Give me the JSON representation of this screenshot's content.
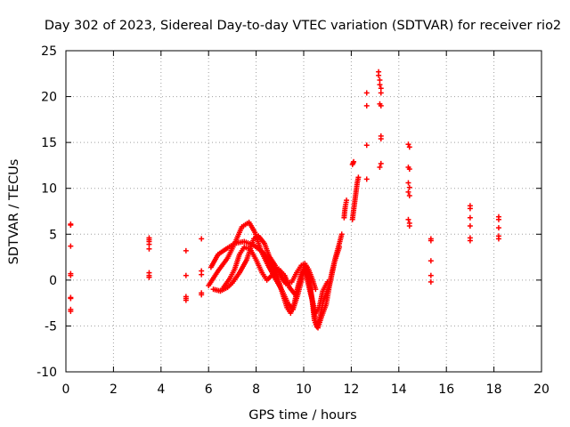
{
  "chart_data": {
    "type": "scatter",
    "title": "Day 302 of 2023, Sidereal Day-to-day VTEC variation (SDTVAR) for receiver rio2",
    "xlabel": "GPS time / hours",
    "ylabel": "SDTVAR / TECUs",
    "xlim": [
      0,
      20
    ],
    "ylim": [
      -10,
      25
    ],
    "xticks": [
      0,
      2,
      4,
      6,
      8,
      10,
      12,
      14,
      16,
      18,
      20
    ],
    "yticks": [
      -10,
      -5,
      0,
      5,
      10,
      15,
      20,
      25
    ],
    "xtick_labels": [
      "0",
      "2",
      "4",
      "6",
      "8",
      "10",
      "12",
      "14",
      "16",
      "18",
      "20"
    ],
    "ytick_labels": [
      "-10",
      "-5",
      "0",
      "5",
      "10",
      "15",
      "20",
      "25"
    ],
    "grid": true,
    "marker": "plus",
    "color": "#ff0000",
    "series": [
      {
        "name": "rio2",
        "points": [
          [
            0.2,
            6.1
          ],
          [
            0.2,
            6.0
          ],
          [
            0.2,
            3.7
          ],
          [
            0.2,
            0.7
          ],
          [
            0.2,
            0.5
          ],
          [
            0.2,
            -1.9
          ],
          [
            0.2,
            -2.0
          ],
          [
            0.2,
            -3.2
          ],
          [
            0.2,
            -3.4
          ],
          [
            3.5,
            4.6
          ],
          [
            3.5,
            4.4
          ],
          [
            3.5,
            4.2
          ],
          [
            3.5,
            3.9
          ],
          [
            3.5,
            3.4
          ],
          [
            3.5,
            0.8
          ],
          [
            3.5,
            0.5
          ],
          [
            3.5,
            0.3
          ],
          [
            5.05,
            3.2
          ],
          [
            5.05,
            0.5
          ],
          [
            5.05,
            -1.8
          ],
          [
            5.05,
            -2.0
          ],
          [
            5.05,
            -2.2
          ],
          [
            5.7,
            4.5
          ],
          [
            5.7,
            1.0
          ],
          [
            5.7,
            0.6
          ],
          [
            5.7,
            -1.4
          ],
          [
            5.7,
            -1.6
          ],
          [
            12.65,
            20.4
          ],
          [
            12.65,
            19.0
          ],
          [
            12.65,
            14.7
          ],
          [
            12.65,
            11.0
          ],
          [
            13.15,
            22.7
          ],
          [
            13.15,
            22.3
          ],
          [
            13.2,
            21.8
          ],
          [
            13.2,
            21.3
          ],
          [
            13.25,
            20.9
          ],
          [
            13.25,
            20.4
          ],
          [
            13.2,
            19.2
          ],
          [
            13.25,
            19.0
          ],
          [
            13.25,
            15.7
          ],
          [
            13.25,
            15.4
          ],
          [
            13.25,
            12.7
          ],
          [
            13.2,
            12.3
          ],
          [
            14.4,
            14.8
          ],
          [
            14.45,
            14.5
          ],
          [
            14.4,
            12.3
          ],
          [
            14.45,
            12.1
          ],
          [
            14.4,
            10.6
          ],
          [
            14.45,
            10.1
          ],
          [
            14.4,
            9.6
          ],
          [
            14.45,
            9.2
          ],
          [
            14.4,
            6.6
          ],
          [
            14.45,
            6.2
          ],
          [
            14.45,
            5.9
          ],
          [
            15.35,
            4.5
          ],
          [
            15.35,
            4.3
          ],
          [
            15.35,
            2.1
          ],
          [
            15.35,
            0.5
          ],
          [
            15.35,
            -0.2
          ],
          [
            17.0,
            8.1
          ],
          [
            17.0,
            7.8
          ],
          [
            17.0,
            6.8
          ],
          [
            17.0,
            5.9
          ],
          [
            17.0,
            4.6
          ],
          [
            17.0,
            4.3
          ],
          [
            18.2,
            6.9
          ],
          [
            18.2,
            6.6
          ],
          [
            18.2,
            5.7
          ],
          [
            18.2,
            4.8
          ],
          [
            18.2,
            4.5
          ]
        ],
        "dense_segments": [
          [
            [
              6.1,
              1.4
            ],
            [
              6.4,
              2.8
            ],
            [
              6.8,
              3.5
            ],
            [
              7.1,
              4.0
            ],
            [
              7.5,
              4.2
            ],
            [
              7.9,
              3.8
            ],
            [
              8.3,
              3.0
            ],
            [
              8.6,
              1.8
            ],
            [
              8.9,
              0.4
            ],
            [
              9.1,
              -1.4
            ],
            [
              9.3,
              -3.0
            ],
            [
              9.45,
              -3.6
            ],
            [
              9.6,
              -2.6
            ],
            [
              9.75,
              -0.8
            ],
            [
              9.9,
              0.8
            ],
            [
              10.05,
              1.4
            ],
            [
              10.2,
              0.3
            ],
            [
              10.35,
              -2.0
            ],
            [
              10.45,
              -4.4
            ],
            [
              10.55,
              -5.1
            ],
            [
              10.7,
              -3.8
            ],
            [
              10.85,
              -2.0
            ],
            [
              11.05,
              -0.8
            ],
            [
              11.2,
              1.0
            ],
            [
              11.35,
              2.6
            ],
            [
              11.5,
              4.0
            ],
            [
              11.6,
              5.0
            ]
          ],
          [
            [
              6.0,
              -0.6
            ],
            [
              6.4,
              1.0
            ],
            [
              6.8,
              2.4
            ],
            [
              7.1,
              4.0
            ],
            [
              7.4,
              5.8
            ],
            [
              7.7,
              6.3
            ],
            [
              7.95,
              5.2
            ],
            [
              8.2,
              3.2
            ],
            [
              8.5,
              1.6
            ],
            [
              8.8,
              0.2
            ],
            [
              9.1,
              -1.2
            ],
            [
              9.35,
              -2.6
            ],
            [
              9.55,
              -3.2
            ],
            [
              9.75,
              -1.6
            ],
            [
              9.95,
              0.4
            ],
            [
              10.1,
              1.5
            ],
            [
              10.25,
              -0.6
            ],
            [
              10.4,
              -2.8
            ],
            [
              10.5,
              -4.6
            ],
            [
              10.6,
              -5.2
            ],
            [
              10.75,
              -4.0
            ],
            [
              10.95,
              -2.6
            ],
            [
              11.1,
              -0.4
            ],
            [
              11.3,
              2.0
            ],
            [
              11.5,
              3.6
            ]
          ],
          [
            [
              6.6,
              -0.9
            ],
            [
              6.9,
              0.2
            ],
            [
              7.1,
              1.2
            ],
            [
              7.3,
              2.8
            ],
            [
              7.5,
              3.6
            ],
            [
              7.75,
              3.4
            ],
            [
              8.0,
              2.2
            ],
            [
              8.25,
              0.8
            ],
            [
              8.45,
              0.0
            ],
            [
              8.7,
              0.6
            ],
            [
              8.95,
              1.2
            ],
            [
              9.2,
              0.5
            ],
            [
              9.4,
              -0.8
            ],
            [
              9.65,
              -1.6
            ],
            [
              9.85,
              -0.2
            ],
            [
              10.0,
              1.0
            ],
            [
              10.15,
              0.0
            ],
            [
              10.3,
              -1.6
            ],
            [
              10.5,
              -3.6
            ],
            [
              10.65,
              -3.0
            ],
            [
              10.8,
              -1.2
            ],
            [
              11.0,
              -0.2
            ]
          ],
          [
            [
              6.2,
              -1.0
            ],
            [
              6.5,
              -1.2
            ],
            [
              6.8,
              -0.8
            ],
            [
              7.0,
              -0.3
            ],
            [
              7.3,
              0.8
            ],
            [
              7.6,
              2.2
            ],
            [
              7.9,
              4.5
            ],
            [
              8.1,
              4.8
            ],
            [
              8.35,
              4.0
            ],
            [
              8.55,
              2.6
            ],
            [
              8.8,
              1.6
            ],
            [
              9.0,
              0.6
            ],
            [
              9.25,
              -0.4
            ],
            [
              9.5,
              -0.2
            ],
            [
              9.7,
              0.8
            ],
            [
              9.9,
              1.6
            ],
            [
              10.05,
              1.8
            ],
            [
              10.2,
              1.2
            ],
            [
              10.35,
              0.2
            ],
            [
              10.5,
              -1.0
            ]
          ],
          [
            [
              11.7,
              6.8
            ],
            [
              11.72,
              7.4
            ],
            [
              11.75,
              8.0
            ],
            [
              11.8,
              8.7
            ]
          ],
          [
            [
              12.05,
              6.6
            ],
            [
              12.1,
              7.6
            ],
            [
              12.15,
              8.6
            ],
            [
              12.2,
              9.6
            ],
            [
              12.25,
              10.6
            ],
            [
              12.3,
              11.2
            ]
          ],
          [
            [
              12.05,
              12.6
            ],
            [
              12.1,
              12.9
            ]
          ]
        ]
      }
    ]
  }
}
